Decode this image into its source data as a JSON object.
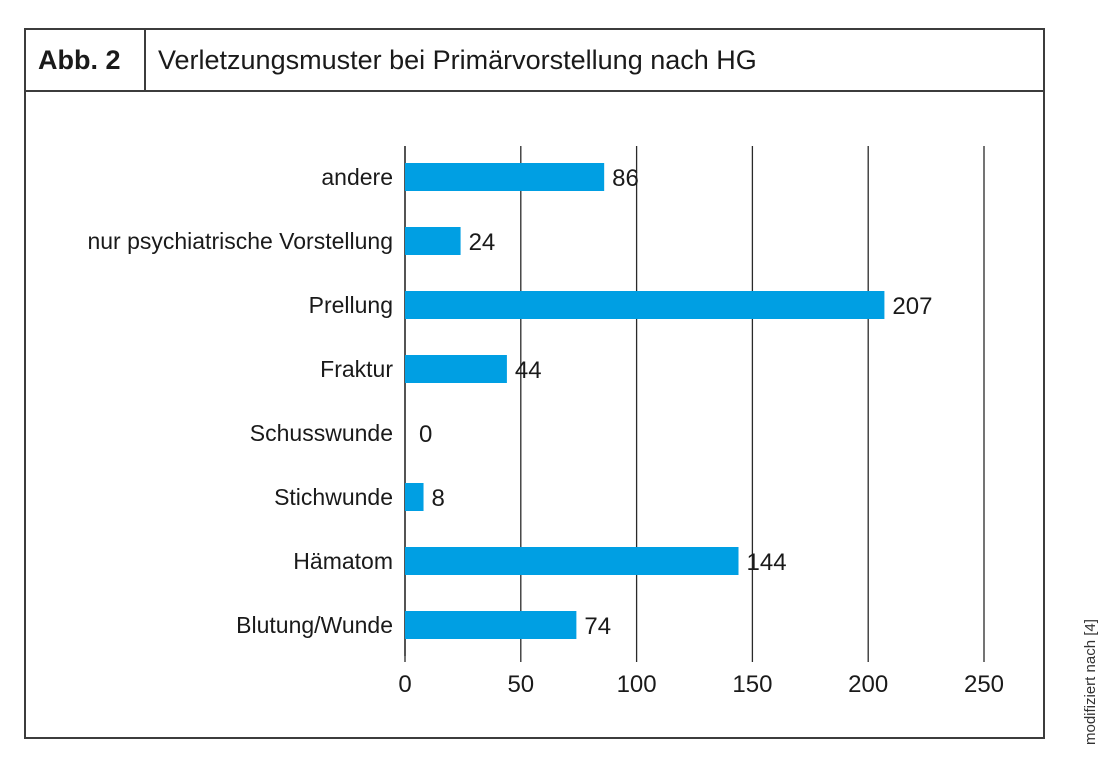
{
  "header": {
    "figure_label": "Abb. 2",
    "title": "Verletzungsmuster bei Primärvorstellung nach HG"
  },
  "source_note": "modifiziert nach [4]",
  "colors": {
    "bar": "#009fe3",
    "grid": "#2a2a2a",
    "frame": "#3c3c3c"
  },
  "chart_data": {
    "type": "bar",
    "orientation": "horizontal",
    "categories": [
      "andere",
      "nur psychiatrische Vorstellung",
      "Prellung",
      "Fraktur",
      "Schusswunde",
      "Stichwunde",
      "Hämatom",
      "Blutung/Wunde"
    ],
    "values": [
      86,
      24,
      207,
      44,
      0,
      8,
      144,
      74
    ],
    "data_labels": [
      "86",
      "24",
      "207",
      "44",
      "0",
      "8",
      "144",
      "74"
    ],
    "xlim": [
      0,
      250
    ],
    "xticks": [
      0,
      50,
      100,
      150,
      200,
      250
    ],
    "xtick_labels": [
      "0",
      "50",
      "100",
      "150",
      "200",
      "250"
    ],
    "xlabel": "",
    "ylabel": "",
    "grid": "vertical"
  }
}
